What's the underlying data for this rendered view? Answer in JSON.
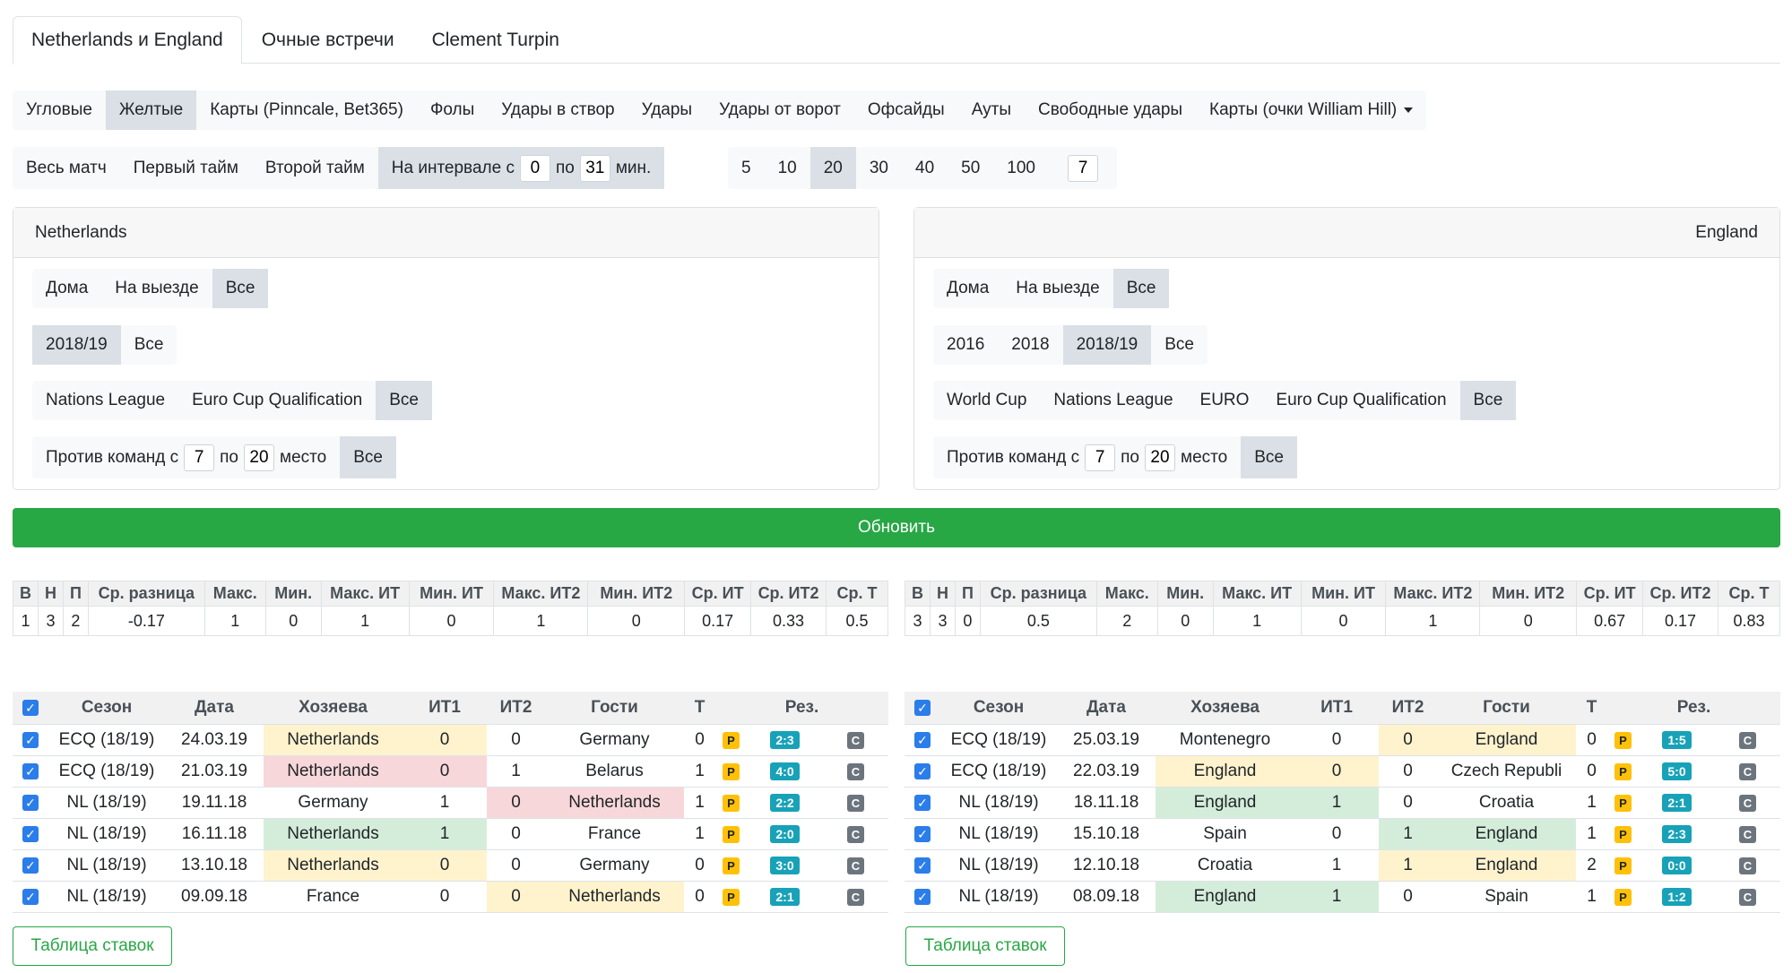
{
  "tabs": [
    "Netherlands и England",
    "Очные встречи",
    "Clement Turpin"
  ],
  "stat_types": [
    "Угловые",
    "Желтые",
    "Карты (Pinncale, Bet365)",
    "Фолы",
    "Удары в створ",
    "Удары",
    "Удары от ворот",
    "Офсайды",
    "Ауты",
    "Свободные удары",
    "Карты (очки William Hill)"
  ],
  "periods": {
    "all": "Весь матч",
    "first": "Первый тайм",
    "second": "Второй тайм",
    "interval_prefix": "На интервале с",
    "interval_from": "0",
    "interval_mid": "по",
    "interval_to": "31",
    "interval_suffix": "мин."
  },
  "counts": [
    "5",
    "10",
    "20",
    "30",
    "40",
    "50",
    "100"
  ],
  "count_custom": "7",
  "update_label": "Обновить",
  "stats_headers": [
    "В",
    "Н",
    "П",
    "Ср. разница",
    "Макс.",
    "Мин.",
    "Макс. ИТ",
    "Мин. ИТ",
    "Макс. ИТ2",
    "Мин. ИТ2",
    "Ср. ИТ",
    "Ср. ИТ2",
    "Ср. Т"
  ],
  "match_headers": [
    "Сезон",
    "Дата",
    "Хозяева",
    "ИТ1",
    "ИТ2",
    "Гости",
    "Т",
    "Рез."
  ],
  "bets_label": "Таблица ставок",
  "badge_p": "P",
  "badge_c": "C",
  "check_glyph": "✓",
  "highlight_colors": {
    "yellow": "#fff3cd",
    "red": "#f8d7da",
    "green": "#d4edda"
  },
  "left": {
    "team": "Netherlands",
    "venue": [
      "Дома",
      "На выезде",
      "Все"
    ],
    "seasons": [
      "2018/19",
      "Все"
    ],
    "tournaments": [
      "Nations League",
      "Euro Cup Qualification",
      "Все"
    ],
    "rank_prefix": "Против команд с",
    "rank_from": "7",
    "rank_mid": "по",
    "rank_to": "20",
    "rank_suffix": "место",
    "rank_all": "Все",
    "stats": [
      "1",
      "3",
      "2",
      "-0.17",
      "1",
      "0",
      "1",
      "0",
      "1",
      "0",
      "0.17",
      "0.33",
      "0.5"
    ],
    "matches": [
      {
        "season": "ECQ (18/19)",
        "date": "24.03.19",
        "home": "Netherlands",
        "it1": "0",
        "it2": "0",
        "away": "Germany",
        "t": "0",
        "score": "2:3",
        "hl": [
          "yellow",
          "yellow",
          "",
          ""
        ]
      },
      {
        "season": "ECQ (18/19)",
        "date": "21.03.19",
        "home": "Netherlands",
        "it1": "0",
        "it2": "1",
        "away": "Belarus",
        "t": "1",
        "score": "4:0",
        "hl": [
          "red",
          "red",
          "",
          ""
        ]
      },
      {
        "season": "NL (18/19)",
        "date": "19.11.18",
        "home": "Germany",
        "it1": "1",
        "it2": "0",
        "away": "Netherlands",
        "t": "1",
        "score": "2:2",
        "hl": [
          "",
          "",
          "red",
          "red"
        ]
      },
      {
        "season": "NL (18/19)",
        "date": "16.11.18",
        "home": "Netherlands",
        "it1": "1",
        "it2": "0",
        "away": "France",
        "t": "1",
        "score": "2:0",
        "hl": [
          "green",
          "green",
          "",
          ""
        ]
      },
      {
        "season": "NL (18/19)",
        "date": "13.10.18",
        "home": "Netherlands",
        "it1": "0",
        "it2": "0",
        "away": "Germany",
        "t": "0",
        "score": "3:0",
        "hl": [
          "yellow",
          "yellow",
          "",
          ""
        ]
      },
      {
        "season": "NL (18/19)",
        "date": "09.09.18",
        "home": "France",
        "it1": "0",
        "it2": "0",
        "away": "Netherlands",
        "t": "0",
        "score": "2:1",
        "hl": [
          "",
          "",
          "yellow",
          "yellow"
        ]
      }
    ]
  },
  "right": {
    "team": "England",
    "venue": [
      "Дома",
      "На выезде",
      "Все"
    ],
    "seasons": [
      "2016",
      "2018",
      "2018/19",
      "Все"
    ],
    "tournaments": [
      "World Cup",
      "Nations League",
      "EURO",
      "Euro Cup Qualification",
      "Все"
    ],
    "rank_prefix": "Против команд с",
    "rank_from": "7",
    "rank_mid": "по",
    "rank_to": "20",
    "rank_suffix": "место",
    "rank_all": "Все",
    "stats": [
      "3",
      "3",
      "0",
      "0.5",
      "2",
      "0",
      "1",
      "0",
      "1",
      "0",
      "0.67",
      "0.17",
      "0.83"
    ],
    "matches": [
      {
        "season": "ECQ (18/19)",
        "date": "25.03.19",
        "home": "Montenegro",
        "it1": "0",
        "it2": "0",
        "away": "England",
        "t": "0",
        "score": "1:5",
        "hl": [
          "",
          "",
          "yellow",
          "yellow"
        ]
      },
      {
        "season": "ECQ (18/19)",
        "date": "22.03.19",
        "home": "England",
        "it1": "0",
        "it2": "0",
        "away": "Czech Republi",
        "t": "0",
        "score": "5:0",
        "hl": [
          "yellow",
          "yellow",
          "",
          ""
        ]
      },
      {
        "season": "NL (18/19)",
        "date": "18.11.18",
        "home": "England",
        "it1": "1",
        "it2": "0",
        "away": "Croatia",
        "t": "1",
        "score": "2:1",
        "hl": [
          "green",
          "green",
          "",
          ""
        ]
      },
      {
        "season": "NL (18/19)",
        "date": "15.10.18",
        "home": "Spain",
        "it1": "0",
        "it2": "1",
        "away": "England",
        "t": "1",
        "score": "2:3",
        "hl": [
          "",
          "",
          "green",
          "green"
        ]
      },
      {
        "season": "NL (18/19)",
        "date": "12.10.18",
        "home": "Croatia",
        "it1": "1",
        "it2": "1",
        "away": "England",
        "t": "2",
        "score": "0:0",
        "hl": [
          "",
          "",
          "yellow",
          "yellow"
        ]
      },
      {
        "season": "NL (18/19)",
        "date": "08.09.18",
        "home": "England",
        "it1": "1",
        "it2": "0",
        "away": "Spain",
        "t": "1",
        "score": "1:2",
        "hl": [
          "green",
          "green",
          "",
          ""
        ]
      }
    ]
  }
}
